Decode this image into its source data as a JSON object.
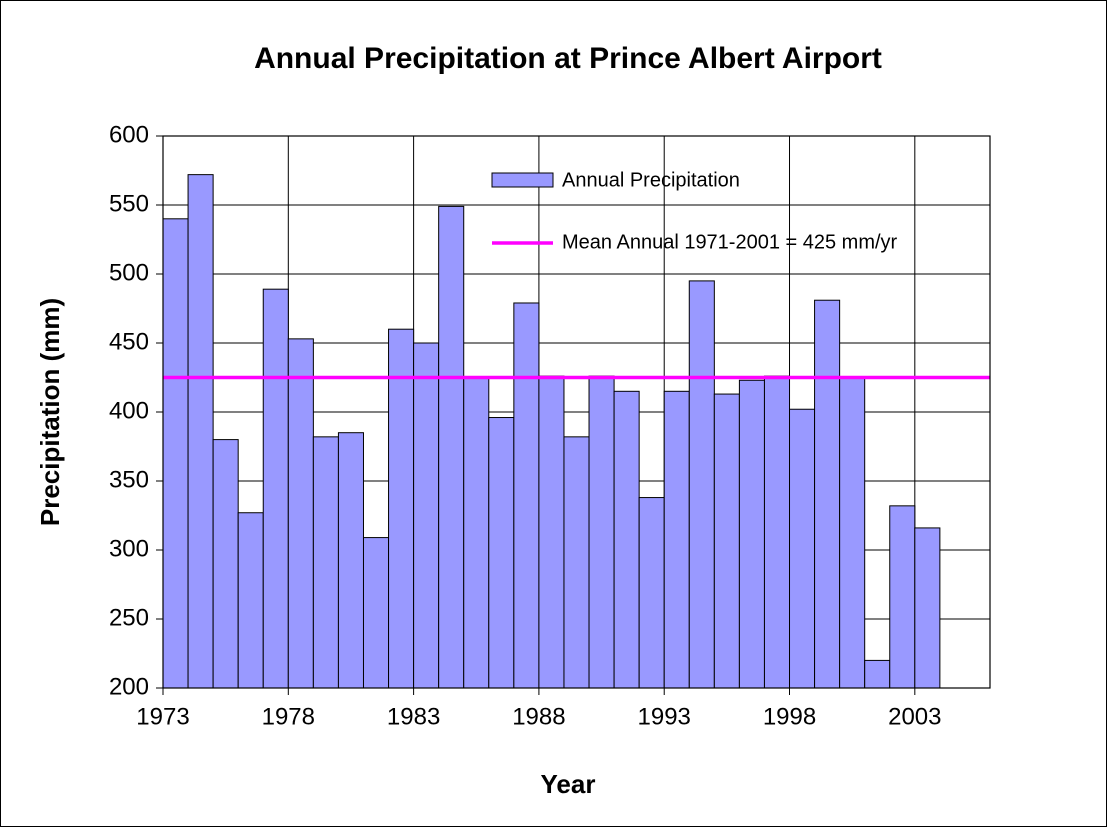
{
  "chart_data": {
    "type": "bar",
    "title": "Annual Precipitation at Prince Albert Airport",
    "x_label": "Year",
    "y_label": "Precipitation (mm)",
    "series": [
      {
        "name": "Annual Precipitation",
        "color": "#9999ff",
        "x": [
          1973,
          1974,
          1975,
          1976,
          1977,
          1978,
          1979,
          1980,
          1981,
          1982,
          1983,
          1984,
          1985,
          1986,
          1987,
          1988,
          1989,
          1990,
          1991,
          1992,
          1993,
          1994,
          1995,
          1996,
          1997,
          1998,
          1999,
          2000,
          2001,
          2002,
          2003
        ],
        "values": [
          540,
          572,
          380,
          327,
          489,
          453,
          382,
          385,
          309,
          460,
          450,
          549,
          425,
          396,
          479,
          426,
          382,
          426,
          415,
          338,
          415,
          495,
          413,
          423,
          426,
          402,
          481,
          425,
          220,
          332,
          316
        ]
      }
    ],
    "mean": {
      "name": "Mean Annual 1971-2001 = 425 mm/yr",
      "color": "#ff00ff",
      "value": 425
    },
    "xlim": [
      1973,
      2006
    ],
    "xticks": [
      1973,
      1978,
      1983,
      1988,
      1993,
      1998,
      2003
    ],
    "ylim": [
      200,
      600
    ],
    "yticks": [
      200,
      250,
      300,
      350,
      400,
      450,
      500,
      550,
      600
    ],
    "grid": true
  }
}
